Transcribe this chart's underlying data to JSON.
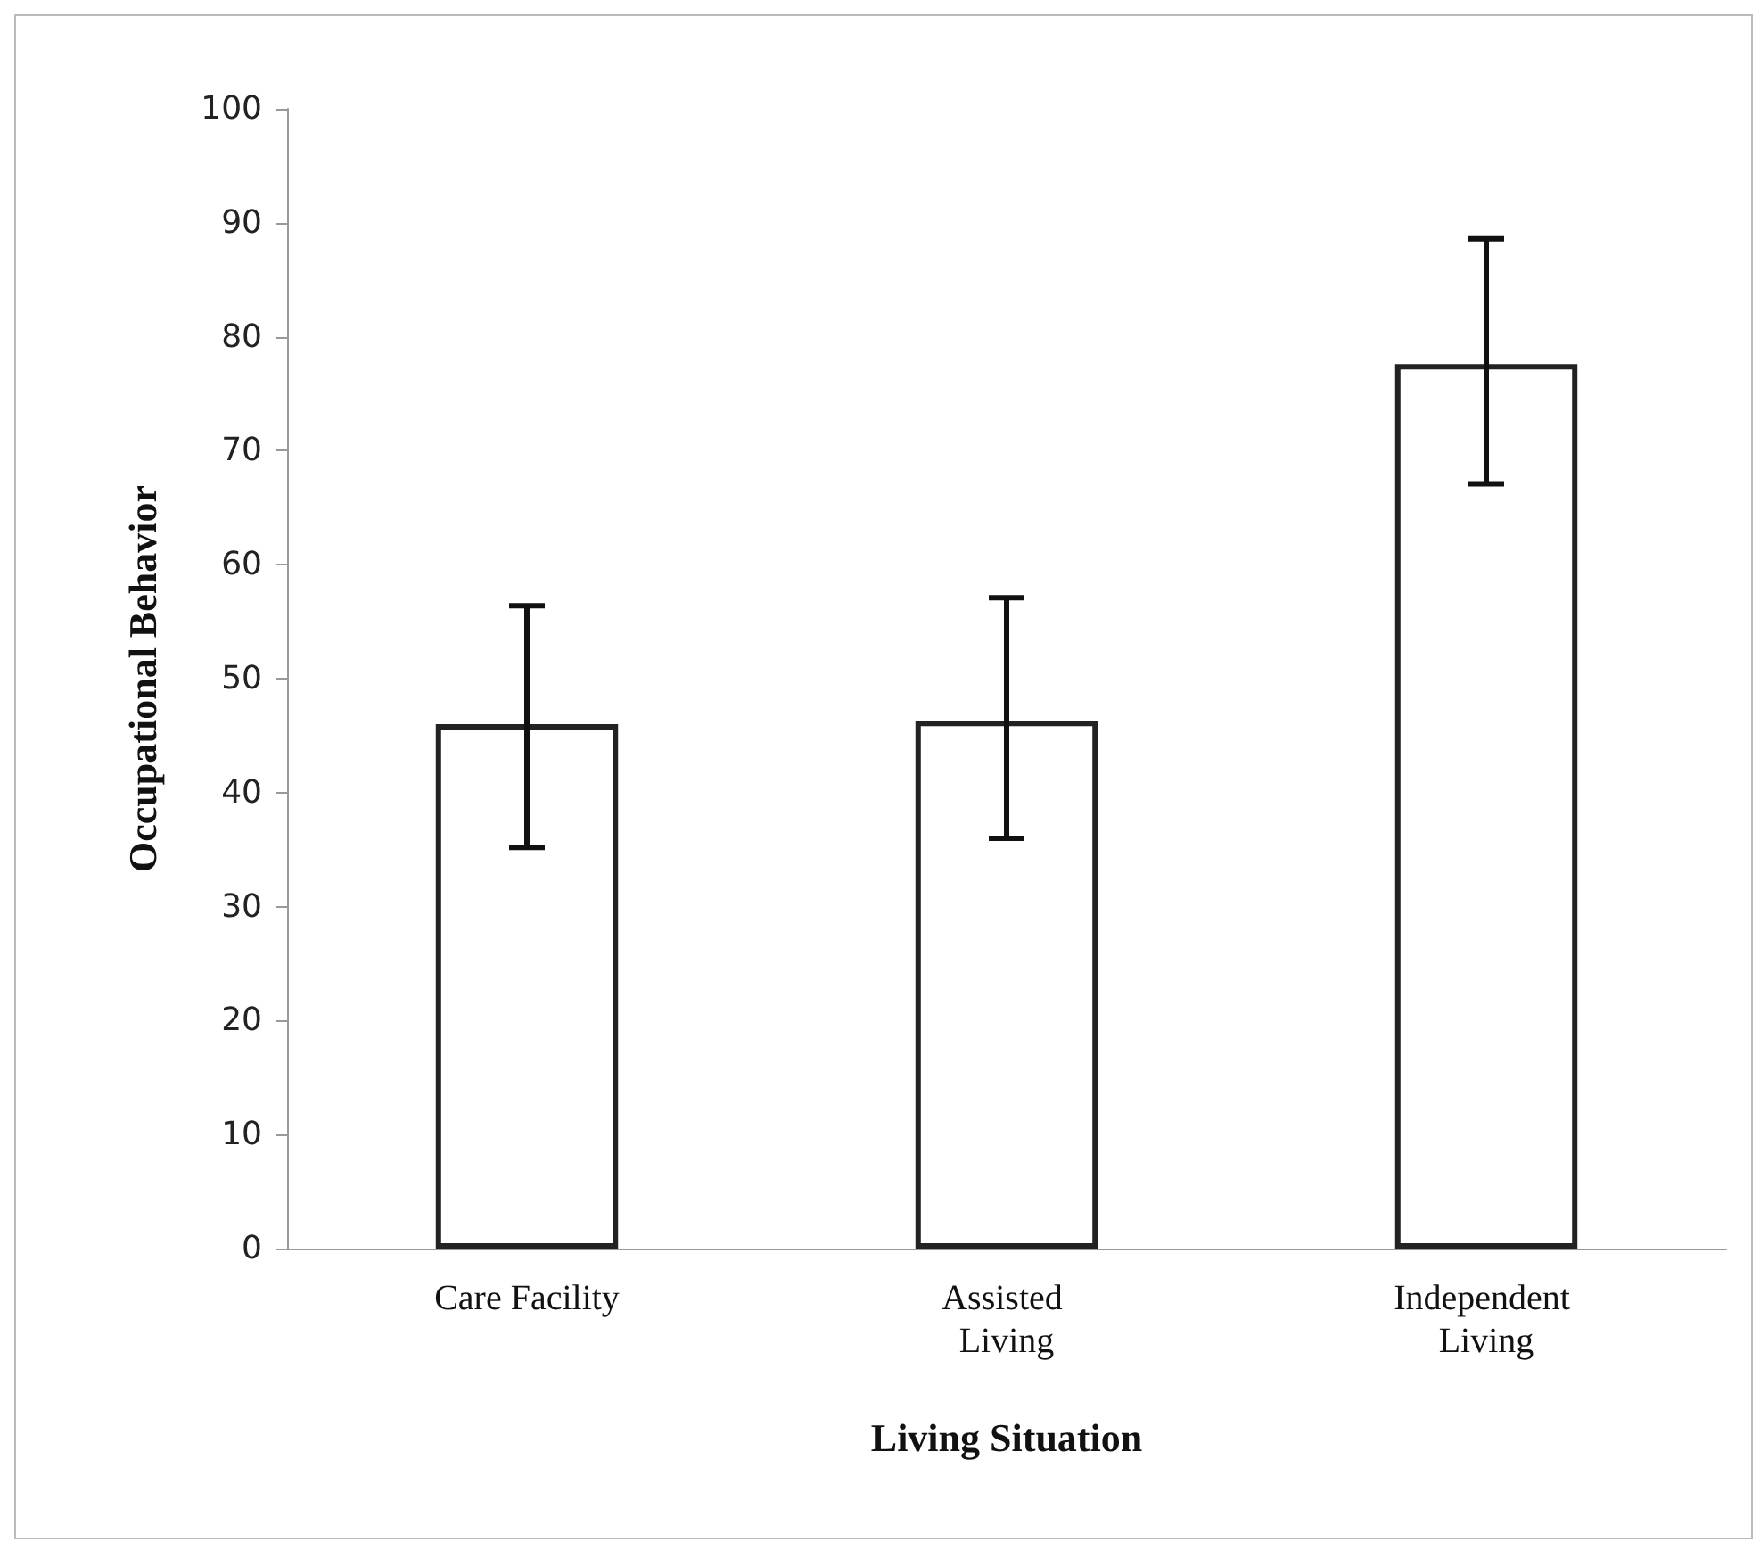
{
  "chart_data": {
    "type": "bar",
    "xlabel": "Living Situation",
    "ylabel": "Occupational Behavior",
    "categories": [
      "Care Facility",
      "Assisted Living",
      "Independent Living"
    ],
    "values": [
      46,
      46.3,
      77.6
    ],
    "errors": [
      [
        35.2,
        56.4
      ],
      [
        36,
        57.1
      ],
      [
        67.1,
        88.6
      ]
    ],
    "color": "#ffffff",
    "ylim": [
      0,
      100
    ],
    "yticks": [
      0,
      10,
      20,
      30,
      40,
      50,
      60,
      70,
      80,
      90,
      100
    ],
    "grid": false
  }
}
